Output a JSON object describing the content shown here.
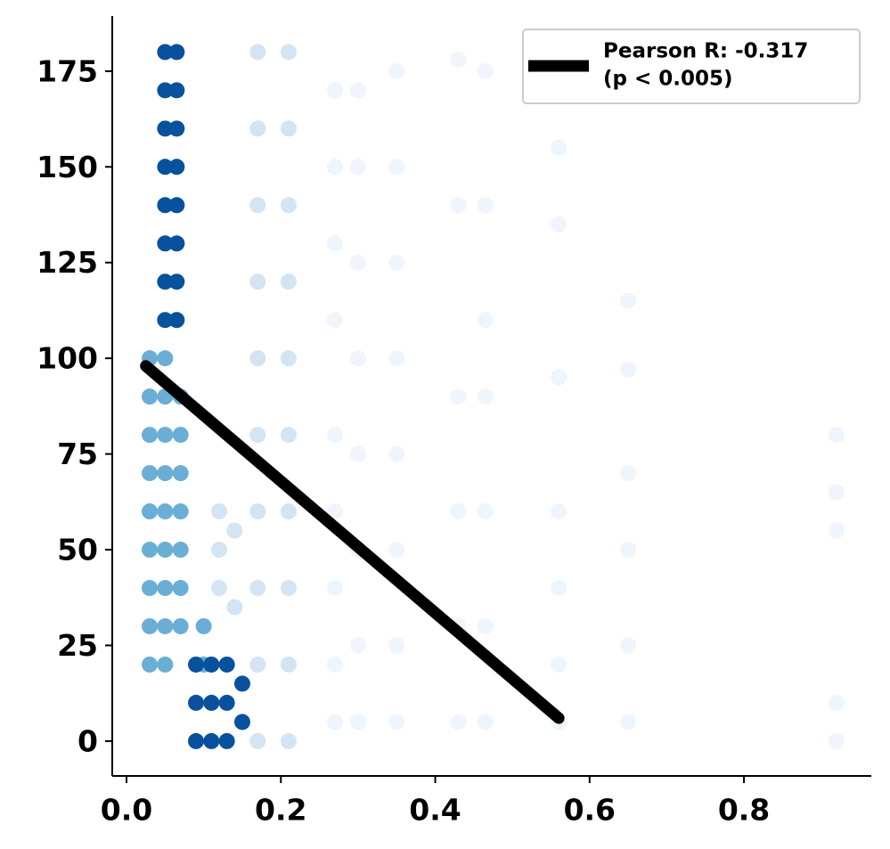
{
  "chart_data": {
    "type": "scatter",
    "xlim": [
      -0.0185,
      0.965
    ],
    "ylim": [
      -9.1,
      189.4
    ],
    "xticks": [
      {
        "value": 0,
        "label": "0.0"
      },
      0.2,
      0.4,
      0.6,
      0.8
    ],
    "yticks": [
      0,
      25,
      50,
      75,
      100,
      125,
      150,
      175
    ],
    "legend_position": "upper right",
    "series": [
      {
        "color": "#eef5fc",
        "x": [
          0.27,
          0.27,
          0.27,
          0.27,
          0.27,
          0.27,
          0.27,
          0.27,
          0.27,
          0.3,
          0.3,
          0.3,
          0.3,
          0.3,
          0.3,
          0.3,
          0.3,
          0.35,
          0.35,
          0.35,
          0.35,
          0.35,
          0.35,
          0.35,
          0.35,
          0.43,
          0.43,
          0.43,
          0.43,
          0.43,
          0.43,
          0.465,
          0.465,
          0.465,
          0.465,
          0.465,
          0.465,
          0.465,
          0.56,
          0.56,
          0.56,
          0.56,
          0.56,
          0.56,
          0.56,
          0.65,
          0.65,
          0.65,
          0.65,
          0.65,
          0.65,
          0.92,
          0.92,
          0.92,
          0.92,
          0.92
        ],
        "values": [
          5,
          20,
          40,
          60,
          80,
          110,
          130,
          150,
          170,
          5,
          25,
          50,
          75,
          100,
          125,
          150,
          170,
          5,
          25,
          50,
          75,
          100,
          125,
          150,
          175,
          5,
          30,
          60,
          90,
          140,
          178,
          5,
          30,
          60,
          90,
          110,
          140,
          175,
          5,
          20,
          40,
          60,
          95,
          135,
          155,
          5,
          25,
          50,
          70,
          97,
          115,
          0,
          10,
          55,
          65,
          80
        ]
      },
      {
        "color": "#d3e4f3",
        "x": [
          0.17,
          0.17,
          0.17,
          0.17,
          0.17,
          0.17,
          0.17,
          0.17,
          0.17,
          0.17,
          0.21,
          0.21,
          0.21,
          0.21,
          0.21,
          0.21,
          0.21,
          0.21,
          0.21,
          0.21,
          0.12,
          0.12,
          0.12,
          0.14,
          0.14
        ],
        "values": [
          0,
          20,
          40,
          60,
          80,
          100,
          120,
          140,
          160,
          180,
          0,
          20,
          40,
          60,
          80,
          100,
          120,
          140,
          160,
          180,
          40,
          50,
          60,
          35,
          55
        ]
      },
      {
        "color": "#6aaed6",
        "x": [
          0.03,
          0.03,
          0.03,
          0.03,
          0.03,
          0.03,
          0.03,
          0.03,
          0.03,
          0.05,
          0.05,
          0.05,
          0.05,
          0.05,
          0.05,
          0.05,
          0.05,
          0.05,
          0.07,
          0.07,
          0.07,
          0.07,
          0.07,
          0.07,
          0.07,
          0.1,
          0.1
        ],
        "values": [
          20,
          30,
          40,
          50,
          60,
          70,
          80,
          90,
          100,
          20,
          30,
          40,
          50,
          60,
          70,
          80,
          90,
          100,
          30,
          40,
          50,
          60,
          70,
          80,
          90,
          20,
          30
        ]
      },
      {
        "color": "#08519c",
        "x": [
          0.05,
          0.05,
          0.05,
          0.05,
          0.05,
          0.05,
          0.05,
          0.05,
          0.065,
          0.065,
          0.065,
          0.065,
          0.065,
          0.065,
          0.065,
          0.065,
          0.09,
          0.09,
          0.09,
          0.11,
          0.11,
          0.11,
          0.13,
          0.13,
          0.13,
          0.15,
          0.15
        ],
        "values": [
          110,
          120,
          130,
          140,
          150,
          160,
          170,
          180,
          110,
          120,
          130,
          140,
          150,
          160,
          170,
          180,
          0,
          10,
          20,
          0,
          10,
          20,
          0,
          10,
          20,
          5,
          15
        ]
      },
      {
        "type": "line",
        "name": [
          "Pearson R: -0.317",
          "(p < 0.005)"
        ],
        "color": "#000000",
        "x": [
          0.025,
          0.56
        ],
        "values": [
          98,
          6
        ]
      }
    ]
  }
}
